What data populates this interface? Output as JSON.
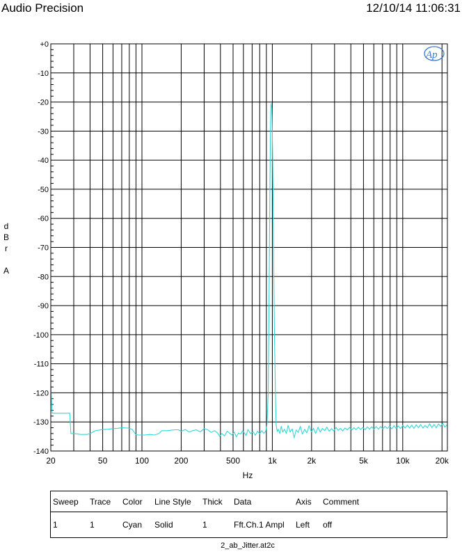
{
  "header": {
    "title": "Audio Precision",
    "timestamp": "12/10/14 11:06:31"
  },
  "chart_data": {
    "type": "line",
    "title": "",
    "xlabel": "Hz",
    "ylabel": [
      "d",
      "B",
      "r",
      "",
      "A"
    ],
    "x_scale": "log",
    "xlim": [
      20,
      22000
    ],
    "ylim": [
      -140,
      0
    ],
    "grid": true,
    "y_ticks": [
      "+0",
      "-10",
      "-20",
      "-30",
      "-40",
      "-50",
      "-60",
      "-70",
      "-80",
      "-90",
      "-100",
      "-110",
      "-120",
      "-130",
      "-140"
    ],
    "x_ticks": [
      {
        "value": 20,
        "label": "20"
      },
      {
        "value": 50,
        "label": "50"
      },
      {
        "value": 100,
        "label": "100"
      },
      {
        "value": 200,
        "label": "200"
      },
      {
        "value": 500,
        "label": "500"
      },
      {
        "value": 1000,
        "label": "1k"
      },
      {
        "value": 2000,
        "label": "2k"
      },
      {
        "value": 5000,
        "label": "5k"
      },
      {
        "value": 10000,
        "label": "10k"
      },
      {
        "value": 20000,
        "label": "20k"
      }
    ],
    "series": [
      {
        "color": "#30d8d8",
        "points": [
          [
            20,
            -118
          ],
          [
            20.5,
            -127
          ],
          [
            21,
            -127
          ],
          [
            28,
            -127
          ],
          [
            28.5,
            -134
          ],
          [
            30,
            -134
          ],
          [
            34,
            -134.3
          ],
          [
            38,
            -134.3
          ],
          [
            40,
            -134
          ],
          [
            44,
            -133
          ],
          [
            50,
            -132.6
          ],
          [
            55,
            -132.5
          ],
          [
            60,
            -132.3
          ],
          [
            65,
            -132.2
          ],
          [
            70,
            -132
          ],
          [
            78,
            -132.1
          ],
          [
            84,
            -132.5
          ],
          [
            90,
            -134.4
          ],
          [
            95,
            -134.5
          ],
          [
            105,
            -134.5
          ],
          [
            115,
            -134.3
          ],
          [
            125,
            -134.5
          ],
          [
            135,
            -134
          ],
          [
            142,
            -133
          ],
          [
            155,
            -133
          ],
          [
            170,
            -132.8
          ],
          [
            180,
            -132.7
          ],
          [
            190,
            -132.7
          ],
          [
            200,
            -133.2
          ],
          [
            215,
            -132.6
          ],
          [
            230,
            -133.5
          ],
          [
            245,
            -133
          ],
          [
            260,
            -132.7
          ],
          [
            280,
            -133.4
          ],
          [
            300,
            -132.3
          ],
          [
            320,
            -132.7
          ],
          [
            340,
            -133.6
          ],
          [
            360,
            -133
          ],
          [
            380,
            -133.8
          ],
          [
            395,
            -135
          ],
          [
            410,
            -134
          ],
          [
            430,
            -134.8
          ],
          [
            450,
            -133.2
          ],
          [
            470,
            -133.9
          ],
          [
            490,
            -134.5
          ],
          [
            510,
            -133.5
          ],
          [
            530,
            -135.2
          ],
          [
            550,
            -133.8
          ],
          [
            570,
            -134.2
          ],
          [
            590,
            -133.1
          ],
          [
            610,
            -133.8
          ],
          [
            630,
            -134.7
          ],
          [
            650,
            -132.6
          ],
          [
            680,
            -134
          ],
          [
            710,
            -133.3
          ],
          [
            740,
            -134.6
          ],
          [
            770,
            -133.2
          ],
          [
            800,
            -134.1
          ],
          [
            830,
            -133
          ],
          [
            860,
            -133.9
          ],
          [
            890,
            -133.2
          ],
          [
            910,
            -131
          ],
          [
            930,
            -120
          ],
          [
            945,
            -85
          ],
          [
            958,
            -50
          ],
          [
            968,
            -28
          ],
          [
            975,
            -21
          ],
          [
            982,
            -20.5
          ],
          [
            990,
            -22
          ],
          [
            1000,
            -30
          ],
          [
            1012,
            -50
          ],
          [
            1025,
            -78
          ],
          [
            1040,
            -102
          ],
          [
            1055,
            -120
          ],
          [
            1070,
            -131
          ],
          [
            1090,
            -133.3
          ],
          [
            1110,
            -132.5
          ],
          [
            1140,
            -134
          ],
          [
            1170,
            -131.5
          ],
          [
            1200,
            -133.5
          ],
          [
            1240,
            -132.5
          ],
          [
            1280,
            -134
          ],
          [
            1320,
            -131.2
          ],
          [
            1370,
            -133.5
          ],
          [
            1420,
            -132.4
          ],
          [
            1470,
            -135.5
          ],
          [
            1520,
            -132.8
          ],
          [
            1580,
            -133.6
          ],
          [
            1640,
            -131.5
          ],
          [
            1700,
            -134.2
          ],
          [
            1770,
            -132.5
          ],
          [
            1840,
            -133.8
          ],
          [
            1910,
            -131.3
          ],
          [
            1990,
            -133.4
          ],
          [
            2070,
            -132.2
          ],
          [
            2150,
            -134
          ],
          [
            2240,
            -131.8
          ],
          [
            2330,
            -133.5
          ],
          [
            2420,
            -132.2
          ],
          [
            2520,
            -133
          ],
          [
            2620,
            -131.8
          ],
          [
            2730,
            -133.2
          ],
          [
            2840,
            -132.3
          ],
          [
            2960,
            -133.1
          ],
          [
            3080,
            -131.9
          ],
          [
            3200,
            -132.9
          ],
          [
            3330,
            -132.2
          ],
          [
            3460,
            -133.1
          ],
          [
            3600,
            -132.1
          ],
          [
            3750,
            -132.7
          ],
          [
            3900,
            -131.9
          ],
          [
            4060,
            -132.8
          ],
          [
            4220,
            -132
          ],
          [
            4390,
            -132.6
          ],
          [
            4570,
            -131.8
          ],
          [
            4750,
            -132.6
          ],
          [
            4940,
            -131.9
          ],
          [
            5140,
            -132.7
          ],
          [
            5350,
            -131.7
          ],
          [
            5560,
            -132.5
          ],
          [
            5790,
            -131.7
          ],
          [
            6020,
            -132.5
          ],
          [
            6260,
            -131.6
          ],
          [
            6510,
            -132.5
          ],
          [
            6770,
            -131.6
          ],
          [
            7040,
            -132.4
          ],
          [
            7320,
            -131.5
          ],
          [
            7610,
            -132.3
          ],
          [
            7920,
            -131.4
          ],
          [
            8240,
            -132.4
          ],
          [
            8570,
            -131.3
          ],
          [
            8910,
            -132.3
          ],
          [
            9270,
            -131.4
          ],
          [
            9640,
            -132.3
          ],
          [
            10030,
            -131.2
          ],
          [
            10430,
            -132.1
          ],
          [
            10850,
            -131.1
          ],
          [
            11280,
            -132.1
          ],
          [
            11730,
            -131.1
          ],
          [
            12200,
            -132.2
          ],
          [
            12690,
            -131
          ],
          [
            13200,
            -132
          ],
          [
            13730,
            -130.9
          ],
          [
            14280,
            -132.1
          ],
          [
            14850,
            -131.2
          ],
          [
            15440,
            -132
          ],
          [
            16060,
            -130.6
          ],
          [
            16700,
            -131.9
          ],
          [
            17370,
            -130.9
          ],
          [
            18060,
            -132
          ],
          [
            18780,
            -130.7
          ],
          [
            19530,
            -131.5
          ],
          [
            20310,
            -130.5
          ],
          [
            21000,
            -131.8
          ],
          [
            22000,
            -131
          ]
        ]
      }
    ]
  },
  "legend": {
    "headers": [
      "Sweep",
      "Trace",
      "Color",
      "Line Style",
      "Thick",
      "Data",
      "Axis",
      "Comment"
    ],
    "row": [
      "1",
      "1",
      "Cyan",
      "Solid",
      "1",
      "Fft.Ch.1 Ampl",
      "Left",
      "off"
    ]
  },
  "footer": {
    "filename": "2_ab_Jitter.at2c"
  }
}
